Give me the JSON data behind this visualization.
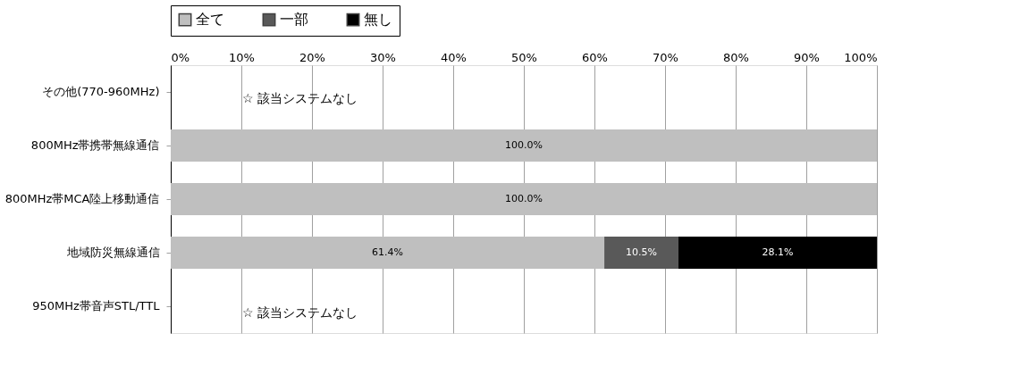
{
  "chart_data": {
    "type": "bar",
    "orientation": "horizontal",
    "stacked": true,
    "categories": [
      "その他(770-960MHz)",
      "800MHz帯携帯無線通信",
      "800MHz帯MCA陸上移動通信",
      "地域防災無線通信",
      "950MHz帯音声STL/TTL"
    ],
    "series": [
      {
        "name": "全て",
        "color": "#bfbfbf",
        "values": [
          null,
          100,
          100,
          61.4,
          null
        ],
        "value_labels": [
          null,
          "100.0%",
          "100.0%",
          "61.4%",
          null
        ]
      },
      {
        "name": "一部",
        "color": "#595959",
        "values": [
          null,
          0,
          0,
          10.5,
          null
        ],
        "value_labels": [
          null,
          null,
          null,
          "10.5%",
          null
        ]
      },
      {
        "name": "無し",
        "color": "#000000",
        "values": [
          null,
          0,
          0,
          28.1,
          null
        ],
        "value_labels": [
          null,
          null,
          null,
          "28.1%",
          null
        ]
      }
    ],
    "xlim": [
      0,
      100
    ],
    "xticks": [
      {
        "value": 0,
        "label": "0%"
      },
      {
        "value": 10,
        "label": "10%"
      },
      {
        "value": 20,
        "label": "20%"
      },
      {
        "value": 30,
        "label": "30%"
      },
      {
        "value": 40,
        "label": "40%"
      },
      {
        "value": 50,
        "label": "50%"
      },
      {
        "value": 60,
        "label": "60%"
      },
      {
        "value": 70,
        "label": "70%"
      },
      {
        "value": 80,
        "label": "80%"
      },
      {
        "value": 90,
        "label": "90%"
      },
      {
        "value": 100,
        "label": "100%"
      }
    ],
    "grid": "x",
    "legend": "top",
    "annotations": [
      "☆ 該当システムなし",
      "☆ 該当システムなし"
    ]
  }
}
